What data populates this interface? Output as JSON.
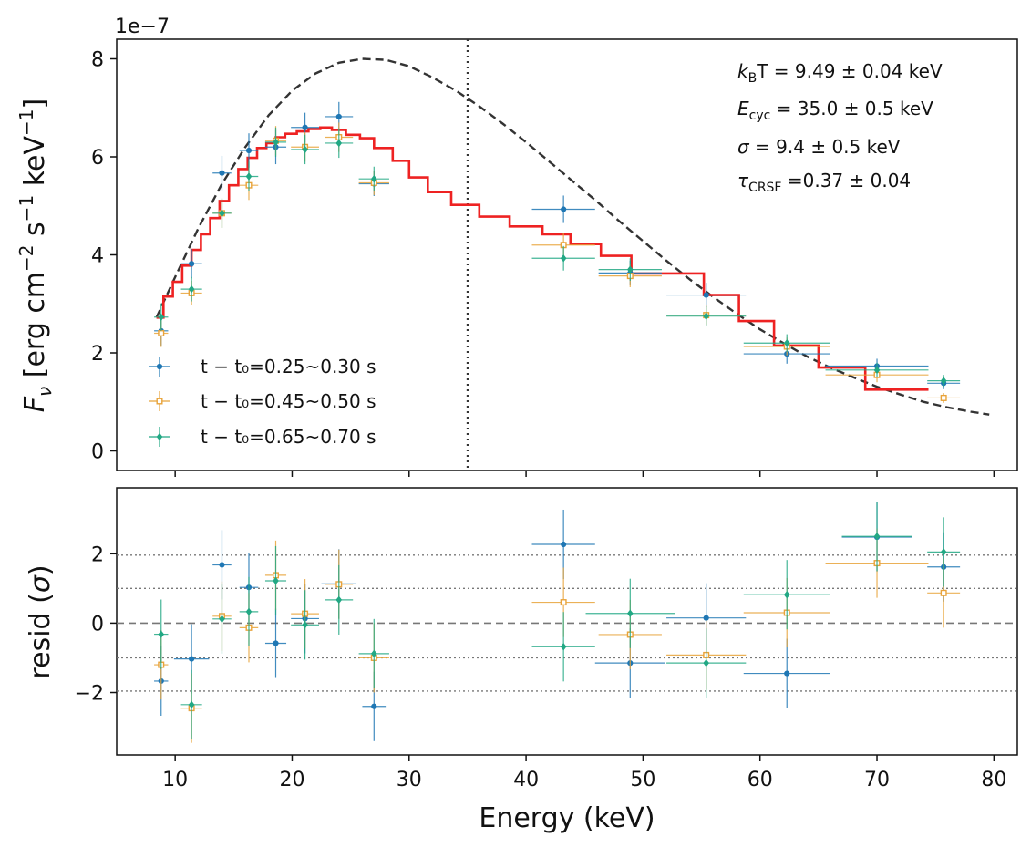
{
  "chart_data": [
    {
      "type": "line",
      "panel": "spectrum",
      "ylabel": "F_ν [erg cm⁻² s⁻¹ keV⁻¹]",
      "ylabel_parts": {
        "main": "F",
        "sub": "ν",
        "bracket_text": " [erg cm",
        "sup1": "−2",
        "s": " s",
        "sup2": "−1",
        "kev": " keV",
        "sup3": "−1",
        "close": "]"
      },
      "sci_offset": "1e−7",
      "xlim": [
        5,
        82
      ],
      "ylim": [
        -0.4,
        8.4
      ],
      "yticks": [
        0,
        2,
        4,
        6,
        8
      ],
      "ytick_labels": [
        "0",
        "2",
        "4",
        "6",
        "8"
      ],
      "xticks": [
        10,
        20,
        30,
        40,
        50,
        60,
        70,
        80
      ],
      "vline_x": 35.0,
      "model_dashed": [
        [
          8.4,
          2.72
        ],
        [
          10,
          3.55
        ],
        [
          12,
          4.55
        ],
        [
          14,
          5.45
        ],
        [
          16,
          6.2
        ],
        [
          18,
          6.85
        ],
        [
          20,
          7.35
        ],
        [
          22,
          7.7
        ],
        [
          24,
          7.92
        ],
        [
          26,
          8.0
        ],
        [
          28,
          7.98
        ],
        [
          30,
          7.85
        ],
        [
          32,
          7.62
        ],
        [
          34,
          7.35
        ],
        [
          36,
          7.03
        ],
        [
          38,
          6.68
        ],
        [
          40,
          6.3
        ],
        [
          42,
          5.9
        ],
        [
          44,
          5.5
        ],
        [
          46,
          5.1
        ],
        [
          48,
          4.68
        ],
        [
          50,
          4.28
        ],
        [
          52,
          3.88
        ],
        [
          54,
          3.5
        ],
        [
          56,
          3.14
        ],
        [
          58,
          2.8
        ],
        [
          60,
          2.48
        ],
        [
          62,
          2.2
        ],
        [
          64,
          1.93
        ],
        [
          66,
          1.7
        ],
        [
          68,
          1.5
        ],
        [
          70,
          1.31
        ],
        [
          72,
          1.15
        ],
        [
          74,
          1.0
        ],
        [
          76,
          0.89
        ],
        [
          78,
          0.8
        ],
        [
          79.6,
          0.74
        ]
      ],
      "model_step_edges": [
        8.4,
        9.0,
        9.8,
        10.6,
        11.4,
        12.2,
        13.0,
        13.8,
        14.6,
        15.4,
        16.2,
        17.0,
        17.8,
        18.6,
        19.4,
        20.4,
        21.4,
        22.4,
        23.4,
        24.6,
        25.8,
        27.0,
        28.6,
        30.0,
        31.6,
        33.6,
        36.0,
        38.6,
        41.4,
        43.8,
        46.4,
        49.0,
        52.0,
        55.2,
        58.2,
        61.2,
        65.0,
        69.0,
        74.4
      ],
      "model_step_values": [
        2.72,
        3.15,
        3.45,
        3.78,
        4.1,
        4.42,
        4.75,
        5.1,
        5.42,
        5.75,
        5.98,
        6.18,
        6.28,
        6.4,
        6.47,
        6.52,
        6.57,
        6.6,
        6.55,
        6.45,
        6.38,
        6.18,
        5.92,
        5.58,
        5.28,
        5.02,
        4.78,
        4.58,
        4.42,
        4.22,
        3.98,
        3.62,
        3.62,
        3.18,
        2.65,
        2.15,
        1.7,
        1.25
      ],
      "series": [
        {
          "name": "t − t₀=0.25~0.30 s",
          "color": "#1f77b4",
          "marker": "circle",
          "points": [
            {
              "x": 8.8,
              "xerr": 0.6,
              "y": 2.45,
              "yerr": 0.3
            },
            {
              "x": 11.4,
              "xerr": 0.9,
              "y": 3.82,
              "yerr": 0.3
            },
            {
              "x": 14.0,
              "xerr": 0.8,
              "y": 5.67,
              "yerr": 0.35
            },
            {
              "x": 16.3,
              "xerr": 0.8,
              "y": 6.13,
              "yerr": 0.35
            },
            {
              "x": 18.6,
              "xerr": 0.9,
              "y": 6.2,
              "yerr": 0.35
            },
            {
              "x": 21.1,
              "xerr": 1.2,
              "y": 6.6,
              "yerr": 0.3
            },
            {
              "x": 24.0,
              "xerr": 1.2,
              "y": 6.82,
              "yerr": 0.3
            },
            {
              "x": 27.0,
              "xerr": 1.3,
              "y": 5.45,
              "yerr": 0.25
            },
            {
              "x": 43.2,
              "xerr": 2.7,
              "y": 4.93,
              "yerr": 0.28
            },
            {
              "x": 48.9,
              "xerr": 2.7,
              "y": 3.63,
              "yerr": 0.25
            },
            {
              "x": 55.4,
              "xerr": 3.4,
              "y": 3.18,
              "yerr": 0.25
            },
            {
              "x": 62.3,
              "xerr": 3.7,
              "y": 1.98,
              "yerr": 0.2
            },
            {
              "x": 70.0,
              "xerr": 4.4,
              "y": 1.73,
              "yerr": 0.15
            },
            {
              "x": 75.7,
              "xerr": 1.4,
              "y": 1.38,
              "yerr": 0.12
            }
          ],
          "residuals": [
            {
              "x": 8.8,
              "xerr": 0.6,
              "y": -1.67,
              "yerr": 1.0
            },
            {
              "x": 11.4,
              "xerr": 1.5,
              "y": -1.03,
              "yerr": 1.0
            },
            {
              "x": 14.0,
              "xerr": 0.8,
              "y": 1.68,
              "yerr": 1.0
            },
            {
              "x": 16.3,
              "xerr": 0.8,
              "y": 1.03,
              "yerr": 1.0
            },
            {
              "x": 18.6,
              "xerr": 0.9,
              "y": -0.58,
              "yerr": 1.0
            },
            {
              "x": 21.1,
              "xerr": 1.2,
              "y": 0.13,
              "yerr": 1.0
            },
            {
              "x": 24.0,
              "xerr": 1.5,
              "y": 1.13,
              "yerr": 1.0
            },
            {
              "x": 27.0,
              "xerr": 1.0,
              "y": -2.4,
              "yerr": 1.0
            },
            {
              "x": 43.2,
              "xerr": 2.7,
              "y": 2.27,
              "yerr": 1.0
            },
            {
              "x": 48.9,
              "xerr": 3.0,
              "y": -1.15,
              "yerr": 1.0
            },
            {
              "x": 55.4,
              "xerr": 3.4,
              "y": 0.15,
              "yerr": 1.0
            },
            {
              "x": 62.3,
              "xerr": 3.7,
              "y": -1.45,
              "yerr": 1.0
            },
            {
              "x": 70.0,
              "xerr": 3.0,
              "y": 2.48,
              "yerr": 1.0
            },
            {
              "x": 75.7,
              "xerr": 1.4,
              "y": 1.62,
              "yerr": 1.0
            }
          ]
        },
        {
          "name": "t − t₀=0.45~0.50 s",
          "color": "#e8a33a",
          "marker": "square",
          "points": [
            {
              "x": 8.8,
              "xerr": 0.6,
              "y": 2.4,
              "yerr": 0.28
            },
            {
              "x": 11.4,
              "xerr": 0.9,
              "y": 3.22,
              "yerr": 0.25
            },
            {
              "x": 14.0,
              "xerr": 0.8,
              "y": 4.85,
              "yerr": 0.3
            },
            {
              "x": 16.3,
              "xerr": 0.8,
              "y": 5.42,
              "yerr": 0.3
            },
            {
              "x": 18.6,
              "xerr": 0.9,
              "y": 6.33,
              "yerr": 0.3
            },
            {
              "x": 21.1,
              "xerr": 1.2,
              "y": 6.2,
              "yerr": 0.3
            },
            {
              "x": 24.0,
              "xerr": 1.2,
              "y": 6.4,
              "yerr": 0.3
            },
            {
              "x": 27.0,
              "xerr": 1.3,
              "y": 5.47,
              "yerr": 0.25
            },
            {
              "x": 43.2,
              "xerr": 2.7,
              "y": 4.2,
              "yerr": 0.25
            },
            {
              "x": 48.9,
              "xerr": 2.7,
              "y": 3.57,
              "yerr": 0.23
            },
            {
              "x": 55.4,
              "xerr": 3.4,
              "y": 2.77,
              "yerr": 0.2
            },
            {
              "x": 62.3,
              "xerr": 3.7,
              "y": 2.13,
              "yerr": 0.18
            },
            {
              "x": 70.0,
              "xerr": 4.4,
              "y": 1.55,
              "yerr": 0.15
            },
            {
              "x": 75.7,
              "xerr": 1.4,
              "y": 1.08,
              "yerr": 0.1
            }
          ],
          "residuals": [
            {
              "x": 8.8,
              "xerr": 0.6,
              "y": -1.2,
              "yerr": 1.0
            },
            {
              "x": 11.4,
              "xerr": 0.9,
              "y": -2.45,
              "yerr": 1.0
            },
            {
              "x": 14.0,
              "xerr": 0.8,
              "y": 0.2,
              "yerr": 1.0
            },
            {
              "x": 16.3,
              "xerr": 0.8,
              "y": -0.13,
              "yerr": 1.0
            },
            {
              "x": 18.6,
              "xerr": 0.9,
              "y": 1.38,
              "yerr": 1.0
            },
            {
              "x": 21.1,
              "xerr": 1.2,
              "y": 0.27,
              "yerr": 1.0
            },
            {
              "x": 24.0,
              "xerr": 1.2,
              "y": 1.12,
              "yerr": 1.0
            },
            {
              "x": 27.0,
              "xerr": 1.3,
              "y": -1.0,
              "yerr": 1.0
            },
            {
              "x": 43.2,
              "xerr": 2.7,
              "y": 0.6,
              "yerr": 1.0
            },
            {
              "x": 48.9,
              "xerr": 2.7,
              "y": -0.33,
              "yerr": 1.0
            },
            {
              "x": 55.4,
              "xerr": 3.4,
              "y": -0.92,
              "yerr": 1.0
            },
            {
              "x": 62.3,
              "xerr": 3.7,
              "y": 0.3,
              "yerr": 1.0
            },
            {
              "x": 70.0,
              "xerr": 4.4,
              "y": 1.73,
              "yerr": 1.0
            },
            {
              "x": 75.7,
              "xerr": 1.4,
              "y": 0.87,
              "yerr": 1.0
            }
          ]
        },
        {
          "name": "t − t₀=0.65~0.70 s",
          "color": "#22a884",
          "marker": "diamond",
          "points": [
            {
              "x": 8.8,
              "xerr": 0.6,
              "y": 2.73,
              "yerr": 0.28
            },
            {
              "x": 11.4,
              "xerr": 0.9,
              "y": 3.3,
              "yerr": 0.25
            },
            {
              "x": 14.0,
              "xerr": 0.8,
              "y": 4.85,
              "yerr": 0.3
            },
            {
              "x": 16.3,
              "xerr": 0.8,
              "y": 5.6,
              "yerr": 0.3
            },
            {
              "x": 18.6,
              "xerr": 0.9,
              "y": 6.3,
              "yerr": 0.3
            },
            {
              "x": 21.1,
              "xerr": 1.2,
              "y": 6.15,
              "yerr": 0.3
            },
            {
              "x": 24.0,
              "xerr": 1.2,
              "y": 6.28,
              "yerr": 0.3
            },
            {
              "x": 27.0,
              "xerr": 1.3,
              "y": 5.55,
              "yerr": 0.25
            },
            {
              "x": 43.2,
              "xerr": 2.7,
              "y": 3.93,
              "yerr": 0.25
            },
            {
              "x": 48.9,
              "xerr": 2.7,
              "y": 3.7,
              "yerr": 0.23
            },
            {
              "x": 55.4,
              "xerr": 3.4,
              "y": 2.75,
              "yerr": 0.2
            },
            {
              "x": 62.3,
              "xerr": 3.7,
              "y": 2.2,
              "yerr": 0.18
            },
            {
              "x": 70.0,
              "xerr": 4.4,
              "y": 1.65,
              "yerr": 0.15
            },
            {
              "x": 75.7,
              "xerr": 1.4,
              "y": 1.43,
              "yerr": 0.12
            }
          ],
          "residuals": [
            {
              "x": 8.8,
              "xerr": 0.6,
              "y": -0.32,
              "yerr": 1.0
            },
            {
              "x": 11.4,
              "xerr": 0.9,
              "y": -2.35,
              "yerr": 1.0
            },
            {
              "x": 14.0,
              "xerr": 0.8,
              "y": 0.12,
              "yerr": 1.0
            },
            {
              "x": 16.3,
              "xerr": 0.8,
              "y": 0.33,
              "yerr": 1.0
            },
            {
              "x": 18.6,
              "xerr": 0.9,
              "y": 1.22,
              "yerr": 1.0
            },
            {
              "x": 21.1,
              "xerr": 1.2,
              "y": -0.05,
              "yerr": 1.0
            },
            {
              "x": 24.0,
              "xerr": 1.2,
              "y": 0.67,
              "yerr": 1.0
            },
            {
              "x": 27.0,
              "xerr": 1.3,
              "y": -0.88,
              "yerr": 1.0
            },
            {
              "x": 43.2,
              "xerr": 2.7,
              "y": -0.68,
              "yerr": 1.0
            },
            {
              "x": 48.9,
              "xerr": 3.8,
              "y": 0.28,
              "yerr": 1.0
            },
            {
              "x": 55.4,
              "xerr": 3.4,
              "y": -1.15,
              "yerr": 1.0
            },
            {
              "x": 62.3,
              "xerr": 3.7,
              "y": 0.82,
              "yerr": 1.0
            },
            {
              "x": 70.0,
              "xerr": 3.0,
              "y": 2.5,
              "yerr": 1.0
            },
            {
              "x": 75.7,
              "xerr": 1.4,
              "y": 2.05,
              "yerr": 1.0
            }
          ]
        }
      ],
      "annotations": [
        {
          "main": "k",
          "sub": "B",
          "rest": "T = 9.49 ± 0.04 keV",
          "italic_main": true
        },
        {
          "main": "E",
          "sub": "cyc",
          "rest": " = 35.0 ± 0.5 keV",
          "italic_main": true
        },
        {
          "main": "σ",
          "sub": "",
          "rest": " = 9.4 ± 0.5 keV",
          "italic_main": true
        },
        {
          "main": "τ",
          "sub": "CRSF",
          "rest": " =0.37 ± 0.04",
          "italic_main": true
        }
      ],
      "legend_position": "lower-left"
    },
    {
      "type": "scatter",
      "panel": "residuals",
      "ylabel": "resid (σ)",
      "ylabel_parts": {
        "pre": "resid (",
        "sym": "σ",
        "post": ")"
      },
      "xlabel": "Energy (keV)",
      "xlim": [
        5,
        82
      ],
      "ylim": [
        -3.8,
        3.9
      ],
      "yticks": [
        -2,
        0,
        2
      ],
      "ytick_labels": [
        "−2",
        "0",
        "2"
      ],
      "xticks": [
        10,
        20,
        30,
        40,
        50,
        60,
        70,
        80
      ],
      "xtick_labels": [
        "10",
        "20",
        "30",
        "40",
        "50",
        "60",
        "70",
        "80"
      ],
      "hlines_dotted": [
        -1.96,
        -1,
        1,
        1.96
      ],
      "hline_dashed": 0
    }
  ]
}
